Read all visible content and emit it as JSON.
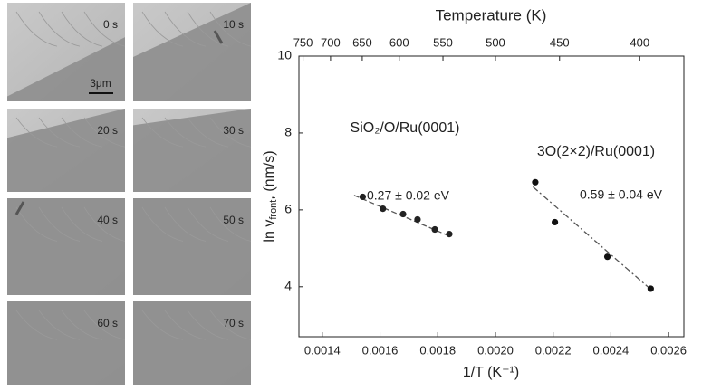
{
  "panels": [
    {
      "label": "0 s",
      "scale_bar": "3μm"
    },
    {
      "label": "10 s"
    },
    {
      "label": "20 s"
    },
    {
      "label": "30 s"
    },
    {
      "label": "40 s"
    },
    {
      "label": "50 s"
    },
    {
      "label": "60 s"
    },
    {
      "label": "70 s"
    }
  ],
  "chart_data": {
    "type": "scatter",
    "xlabel": "1/T (K⁻¹)",
    "ylabel": [
      "ln v",
      "front",
      ",  (nm/s)"
    ],
    "x2label": "Temperature (K)",
    "x2_scale": "reciprocal",
    "xlim": [
      0.001319,
      0.002653
    ],
    "ylim": [
      2.7,
      10
    ],
    "xticks": [
      0.0014,
      0.0016,
      0.0018,
      {
        "value": 0.002,
        "label": "0.0020"
      },
      0.0022,
      0.0024,
      0.0026
    ],
    "yticks": [
      4,
      6,
      8,
      10
    ],
    "x2ticks": [
      750,
      700,
      650,
      600,
      550,
      500,
      450,
      400
    ],
    "series": [
      {
        "name": "SiO₂/O/Ru(0001)",
        "color": "#222222",
        "x": [
          0.00154,
          0.00161,
          0.00168,
          0.00173,
          0.00179,
          0.00184
        ],
        "values": [
          6.34,
          6.03,
          5.89,
          5.75,
          5.49,
          5.37
        ],
        "fit_x": [
          0.00151,
          0.00184
        ],
        "fit_y": [
          6.38,
          5.32
        ],
        "fit_color": "#555555",
        "annotation": "0.27 ± 0.02  eV"
      },
      {
        "name": "3O(2×2)/Ru(0001)",
        "color": "#111111",
        "x": [
          0.002138,
          0.002206,
          0.002388,
          0.002538
        ],
        "values": [
          6.72,
          5.68,
          4.78,
          3.95
        ],
        "fit_x": [
          0.00213,
          0.00254
        ],
        "fit_y": [
          6.6,
          3.92
        ],
        "fit_color": "#555555",
        "annotation": "0.59 ± 0.04  eV"
      }
    ]
  }
}
